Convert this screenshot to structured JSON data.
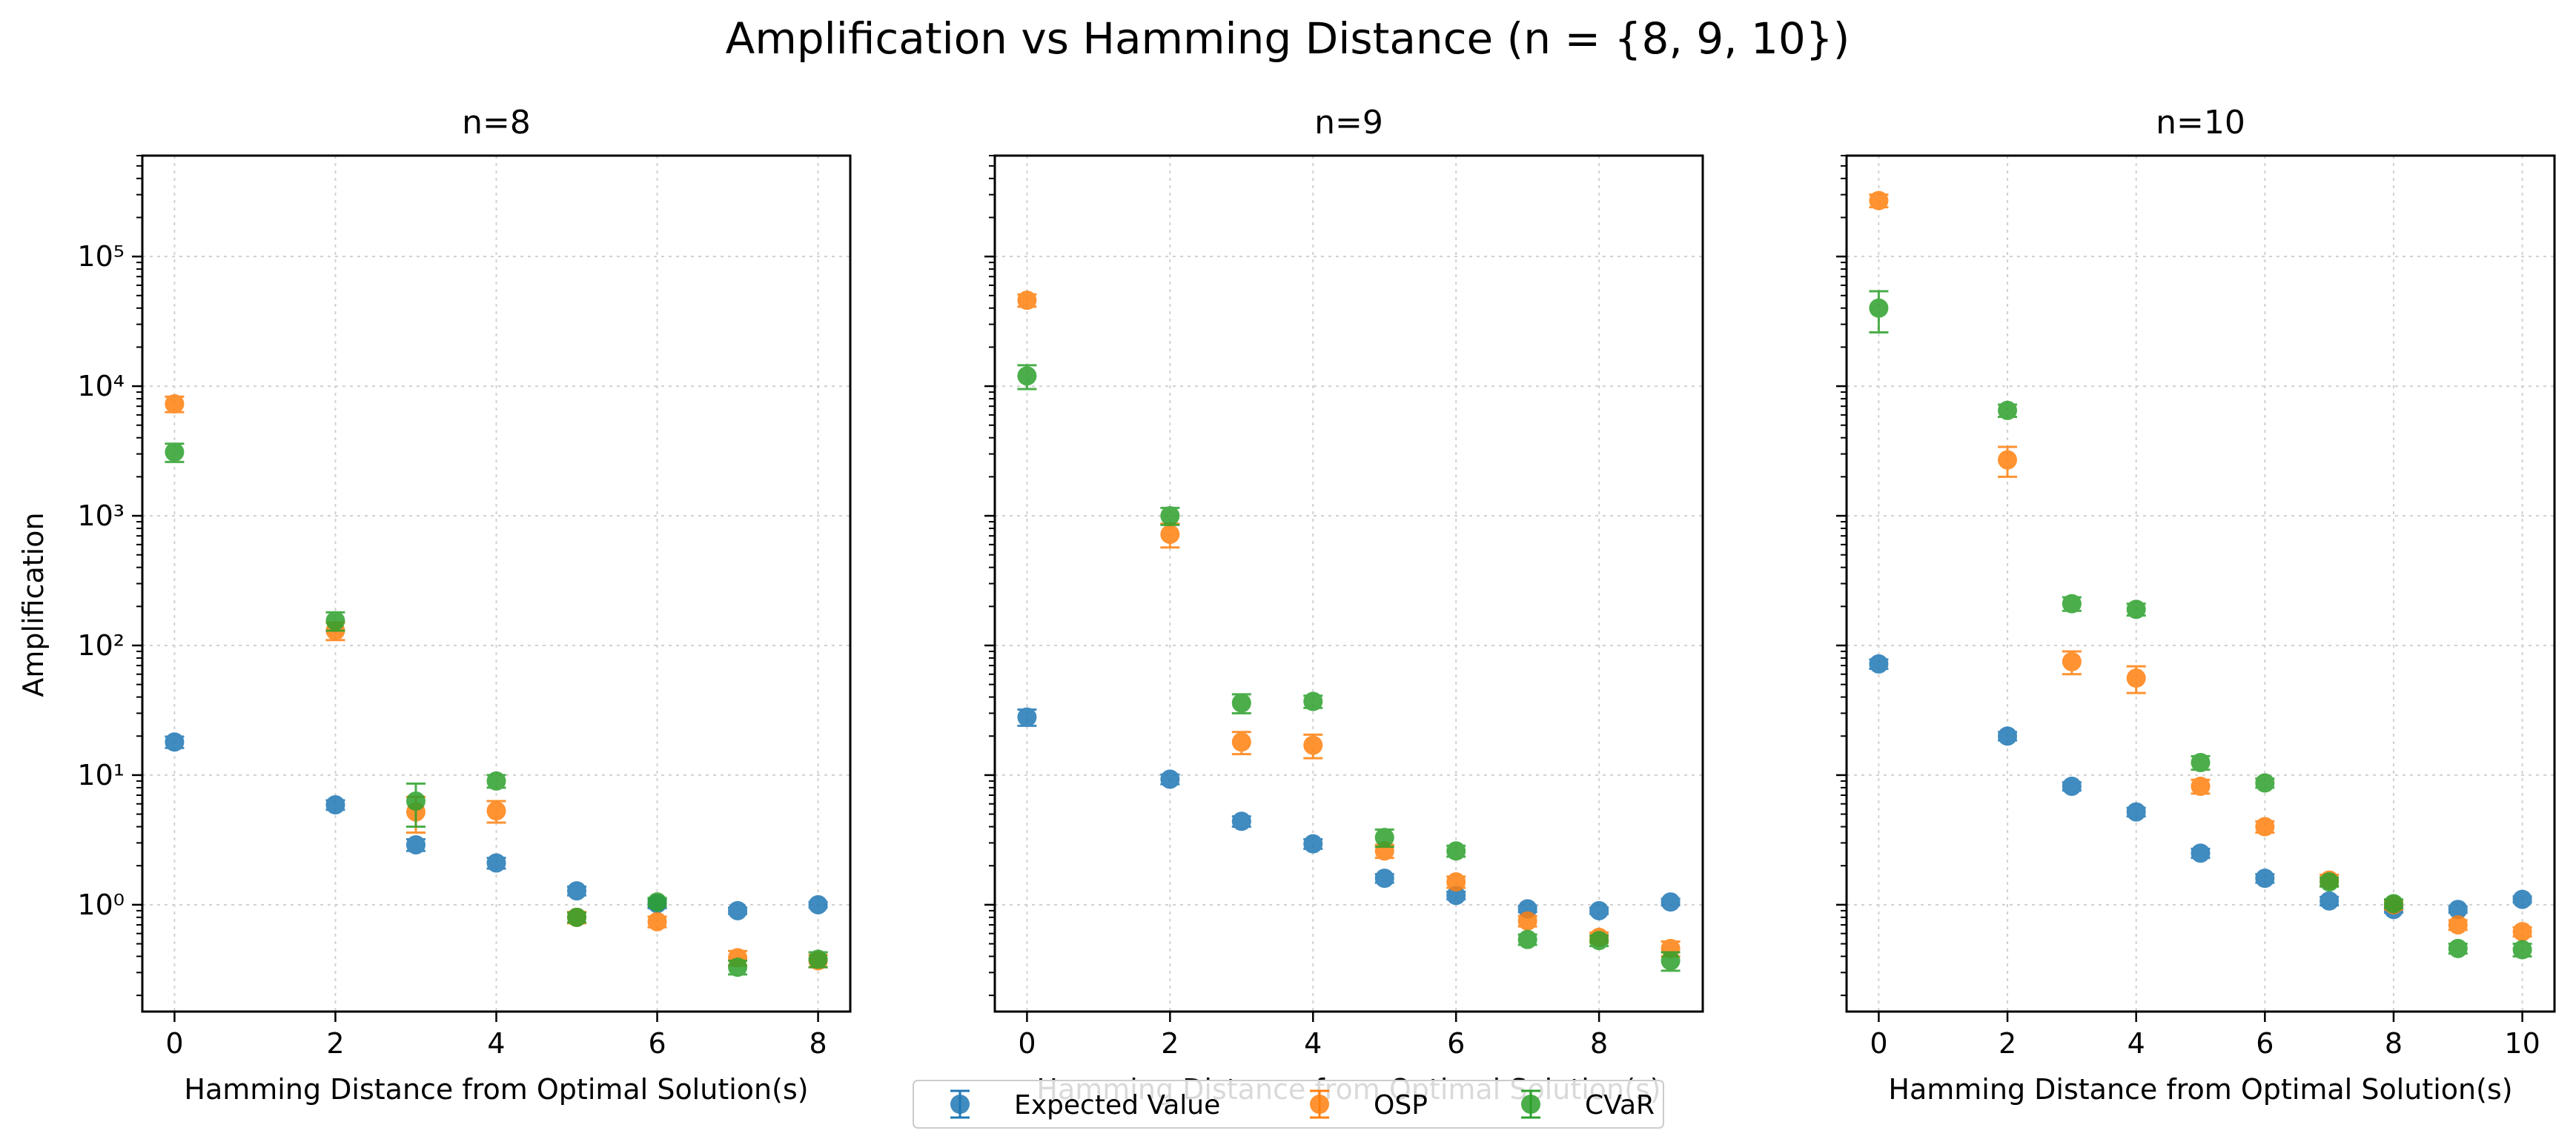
{
  "figure": {
    "title": "Amplification vs Hamming Distance (n = {8, 9, 10})",
    "ylabel": "Amplification",
    "xlabel": "Hamming Distance from Optimal Solution(s)"
  },
  "legend": {
    "placement": "bottom-center",
    "entries": [
      {
        "name": "Expected Value",
        "color": "#1f77b4"
      },
      {
        "name": "OSP",
        "color": "#ff7f0e"
      },
      {
        "name": "CVaR",
        "color": "#2ca02c"
      }
    ]
  },
  "chart_data": [
    {
      "type": "scatter",
      "title": "n=8",
      "xlabel": "Hamming Distance from Optimal Solution(s)",
      "ylabel": "Amplification",
      "yscale": "log",
      "grid": true,
      "xlim": [
        -0.4,
        8.4
      ],
      "ylim": [
        0.15,
        600000
      ],
      "xticks": [
        0,
        2,
        4,
        6,
        8
      ],
      "yticks": [
        1,
        10,
        100,
        1000,
        10000,
        100000
      ],
      "ytick_labels": [
        "10^0",
        "10^1",
        "10^2",
        "10^3",
        "10^4",
        "10^5"
      ],
      "series": [
        {
          "name": "Expected Value",
          "color": "#1f77b4",
          "x": [
            0,
            2,
            3,
            4,
            5,
            6,
            7,
            8
          ],
          "y": [
            18,
            5.9,
            2.9,
            2.1,
            1.28,
            1.02,
            0.9,
            1.0
          ],
          "yerr_low": [
            1.8,
            0.5,
            0.3,
            0.2,
            0.1,
            0.08,
            0.05,
            0.05
          ],
          "yerr_high": [
            1.8,
            0.5,
            0.3,
            0.2,
            0.1,
            0.08,
            0.05,
            0.05
          ]
        },
        {
          "name": "OSP",
          "color": "#ff7f0e",
          "x": [
            0,
            2,
            3,
            4,
            5,
            6,
            7,
            8
          ],
          "y": [
            7300,
            130,
            5.2,
            5.3,
            0.8,
            0.74,
            0.39,
            0.37
          ],
          "yerr_low": [
            1000,
            20,
            1.6,
            1.0,
            0.08,
            0.07,
            0.05,
            0.04
          ],
          "yerr_high": [
            1000,
            20,
            1.6,
            1.0,
            0.08,
            0.07,
            0.05,
            0.04
          ]
        },
        {
          "name": "CVaR",
          "color": "#2ca02c",
          "x": [
            0,
            2,
            3,
            4,
            5,
            6,
            7,
            8
          ],
          "y": [
            3100,
            155,
            6.3,
            9.0,
            0.8,
            1.05,
            0.33,
            0.38
          ],
          "yerr_low": [
            500,
            25,
            2.3,
            1.0,
            0.07,
            0.08,
            0.04,
            0.05
          ],
          "yerr_high": [
            500,
            25,
            2.3,
            1.0,
            0.07,
            0.08,
            0.04,
            0.05
          ]
        }
      ]
    },
    {
      "type": "scatter",
      "title": "n=9",
      "xlabel": "Hamming Distance from Optimal Solution(s)",
      "ylabel": "",
      "yscale": "log",
      "grid": true,
      "xlim": [
        -0.45,
        9.45
      ],
      "ylim": [
        0.15,
        600000
      ],
      "xticks": [
        0,
        2,
        4,
        6,
        8
      ],
      "yticks": [
        1,
        10,
        100,
        1000,
        10000,
        100000
      ],
      "ytick_labels": [],
      "series": [
        {
          "name": "Expected Value",
          "color": "#1f77b4",
          "x": [
            0,
            2,
            3,
            4,
            5,
            6,
            7,
            8,
            9
          ],
          "y": [
            28,
            9.3,
            4.4,
            2.95,
            1.6,
            1.18,
            0.93,
            0.9,
            1.05
          ],
          "yerr_low": [
            4,
            0.8,
            0.4,
            0.25,
            0.12,
            0.08,
            0.05,
            0.05,
            0.06
          ],
          "yerr_high": [
            4,
            0.8,
            0.4,
            0.25,
            0.12,
            0.08,
            0.05,
            0.05,
            0.06
          ]
        },
        {
          "name": "OSP",
          "color": "#ff7f0e",
          "x": [
            0,
            2,
            3,
            4,
            5,
            6,
            7,
            8,
            9
          ],
          "y": [
            46000,
            720,
            18,
            17,
            2.6,
            1.5,
            0.75,
            0.56,
            0.46
          ],
          "yerr_low": [
            5000,
            150,
            3.5,
            3.5,
            0.3,
            0.15,
            0.07,
            0.05,
            0.06
          ],
          "yerr_high": [
            5000,
            150,
            3.5,
            3.5,
            0.3,
            0.15,
            0.07,
            0.05,
            0.06
          ]
        },
        {
          "name": "CVaR",
          "color": "#2ca02c",
          "x": [
            0,
            2,
            3,
            4,
            5,
            6,
            7,
            8,
            9
          ],
          "y": [
            12000,
            1000,
            36,
            37,
            3.3,
            2.6,
            0.54,
            0.53,
            0.37
          ],
          "yerr_low": [
            2500,
            150,
            6,
            4,
            0.5,
            0.25,
            0.05,
            0.05,
            0.06
          ],
          "yerr_high": [
            2500,
            150,
            6,
            4,
            0.5,
            0.25,
            0.05,
            0.05,
            0.06
          ]
        }
      ]
    },
    {
      "type": "scatter",
      "title": "n=10",
      "xlabel": "Hamming Distance from Optimal Solution(s)",
      "ylabel": "",
      "yscale": "log",
      "grid": true,
      "xlim": [
        -0.5,
        10.5
      ],
      "ylim": [
        0.15,
        600000
      ],
      "xticks": [
        0,
        2,
        4,
        6,
        8,
        10
      ],
      "yticks": [
        1,
        10,
        100,
        1000,
        10000,
        100000
      ],
      "ytick_labels": [],
      "series": [
        {
          "name": "Expected Value",
          "color": "#1f77b4",
          "x": [
            0,
            2,
            3,
            4,
            5,
            6,
            7,
            8,
            9,
            10
          ],
          "y": [
            72,
            20,
            8.2,
            5.2,
            2.5,
            1.6,
            1.07,
            0.92,
            0.92,
            1.1
          ],
          "yerr_low": [
            6,
            1.5,
            0.6,
            0.4,
            0.2,
            0.12,
            0.08,
            0.05,
            0.05,
            0.06
          ],
          "yerr_high": [
            6,
            1.5,
            0.6,
            0.4,
            0.2,
            0.12,
            0.08,
            0.05,
            0.05,
            0.06
          ]
        },
        {
          "name": "OSP",
          "color": "#ff7f0e",
          "x": [
            0,
            2,
            3,
            4,
            5,
            6,
            7,
            8,
            9,
            10
          ],
          "y": [
            270000,
            2700,
            75,
            56,
            8.2,
            4.0,
            1.55,
            1.0,
            0.7,
            0.62
          ],
          "yerr_low": [
            30000,
            700,
            15,
            13,
            1.0,
            0.4,
            0.15,
            0.08,
            0.06,
            0.05
          ],
          "yerr_high": [
            30000,
            700,
            15,
            13,
            1.0,
            0.4,
            0.15,
            0.08,
            0.06,
            0.05
          ]
        },
        {
          "name": "CVaR",
          "color": "#2ca02c",
          "x": [
            0,
            2,
            3,
            4,
            5,
            6,
            7,
            8,
            9,
            10
          ],
          "y": [
            40000,
            6500,
            210,
            190,
            12.5,
            8.7,
            1.5,
            1.02,
            0.46,
            0.45
          ],
          "yerr_low": [
            14000,
            700,
            25,
            20,
            1.5,
            0.7,
            0.12,
            0.08,
            0.04,
            0.05
          ],
          "yerr_high": [
            14000,
            700,
            25,
            20,
            1.5,
            0.7,
            0.12,
            0.08,
            0.04,
            0.05
          ]
        }
      ]
    }
  ]
}
